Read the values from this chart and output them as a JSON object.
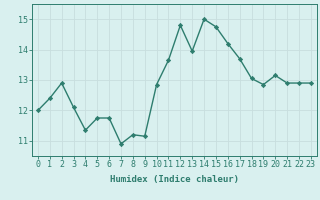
{
  "x": [
    0,
    1,
    2,
    3,
    4,
    5,
    6,
    7,
    8,
    9,
    10,
    11,
    12,
    13,
    14,
    15,
    16,
    17,
    18,
    19,
    20,
    21,
    22,
    23
  ],
  "y": [
    12.0,
    12.4,
    12.9,
    12.1,
    11.35,
    11.75,
    11.75,
    10.9,
    11.2,
    11.15,
    12.85,
    13.65,
    14.8,
    13.95,
    15.0,
    14.75,
    14.2,
    13.7,
    13.05,
    12.85,
    13.15,
    12.9,
    12.9,
    12.9
  ],
  "line_color": "#2e7d6e",
  "marker": "D",
  "marker_size": 2.2,
  "bg_color": "#d9f0ef",
  "grid_color": "#c8dede",
  "xlabel": "Humidex (Indice chaleur)",
  "xlim": [
    -0.5,
    23.5
  ],
  "ylim": [
    10.5,
    15.5
  ],
  "yticks": [
    11,
    12,
    13,
    14,
    15
  ],
  "xticks": [
    0,
    1,
    2,
    3,
    4,
    5,
    6,
    7,
    8,
    9,
    10,
    11,
    12,
    13,
    14,
    15,
    16,
    17,
    18,
    19,
    20,
    21,
    22,
    23
  ],
  "xtick_labels": [
    "0",
    "1",
    "2",
    "3",
    "4",
    "5",
    "6",
    "7",
    "8",
    "9",
    "10",
    "11",
    "12",
    "13",
    "14",
    "15",
    "16",
    "17",
    "18",
    "19",
    "20",
    "21",
    "22",
    "23"
  ],
  "tick_color": "#2e7d6e",
  "label_fontsize": 6.5,
  "tick_fontsize": 6.0,
  "linewidth": 1.0
}
